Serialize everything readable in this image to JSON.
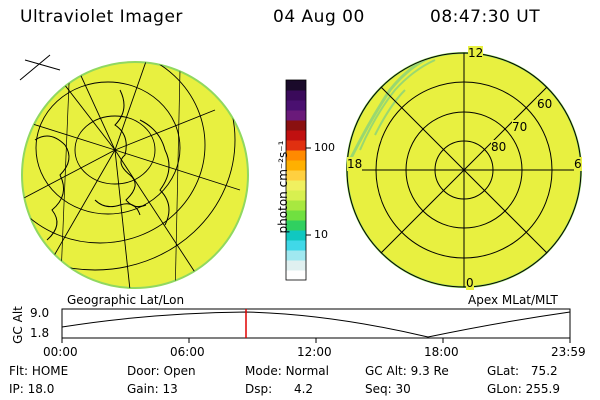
{
  "header": {
    "instrument": "Ultraviolet Imager",
    "date": "04 Aug 00",
    "time": "08:47:30 UT"
  },
  "left_panel": {
    "label": "Geographic Lat/Lon"
  },
  "colorbar": {
    "unit_label": "photon cm⁻²s⁻¹",
    "ticks": [
      "100",
      "10"
    ],
    "colors": [
      "#1a0a2a",
      "#3a0a5a",
      "#4a1070",
      "#6a1a7a",
      "#8a1010",
      "#c01010",
      "#e03010",
      "#ff8a00",
      "#ffb000",
      "#ffd040",
      "#f0f060",
      "#d8f050",
      "#a8e840",
      "#70e040",
      "#30d060",
      "#10c8c0",
      "#40d8e8",
      "#a0e8f0",
      "#e0f0f0",
      "#ffffff"
    ]
  },
  "right_panel": {
    "label": "Apex MLat/MLT",
    "mlt_labels": {
      "top": "12",
      "left": "18",
      "right": "6",
      "bottom": "0"
    },
    "lat_labels": [
      "60",
      "70",
      "80"
    ]
  },
  "alt_plot": {
    "ylabel": "GC Alt",
    "yticks": [
      "9.0",
      "1.8"
    ],
    "xticks": [
      "00:00",
      "06:00",
      "12:00",
      "18:00",
      "23:59"
    ],
    "marker_color": "#e00000"
  },
  "status": {
    "flt_label": "Flt:",
    "flt_value": "HOME",
    "ip_label": "IP:",
    "ip_value": "18.0",
    "door_label": "Door:",
    "door_value": "Open",
    "gain_label": "Gain:",
    "gain_value": "13",
    "mode_label": "Mode:",
    "mode_value": "Normal",
    "dsp_label": "Dsp:",
    "dsp_value": "4.2",
    "gcalt_label": "GC Alt:",
    "gcalt_value": "9.3 Re",
    "seq_label": "Seq:",
    "seq_value": "30",
    "glat_label": "GLat:",
    "glat_value": "75.2",
    "glon_label": "GLon:",
    "glon_value": "255.9"
  },
  "colors": {
    "image_fill": "#e8f040",
    "image_edge": "#90d860"
  }
}
